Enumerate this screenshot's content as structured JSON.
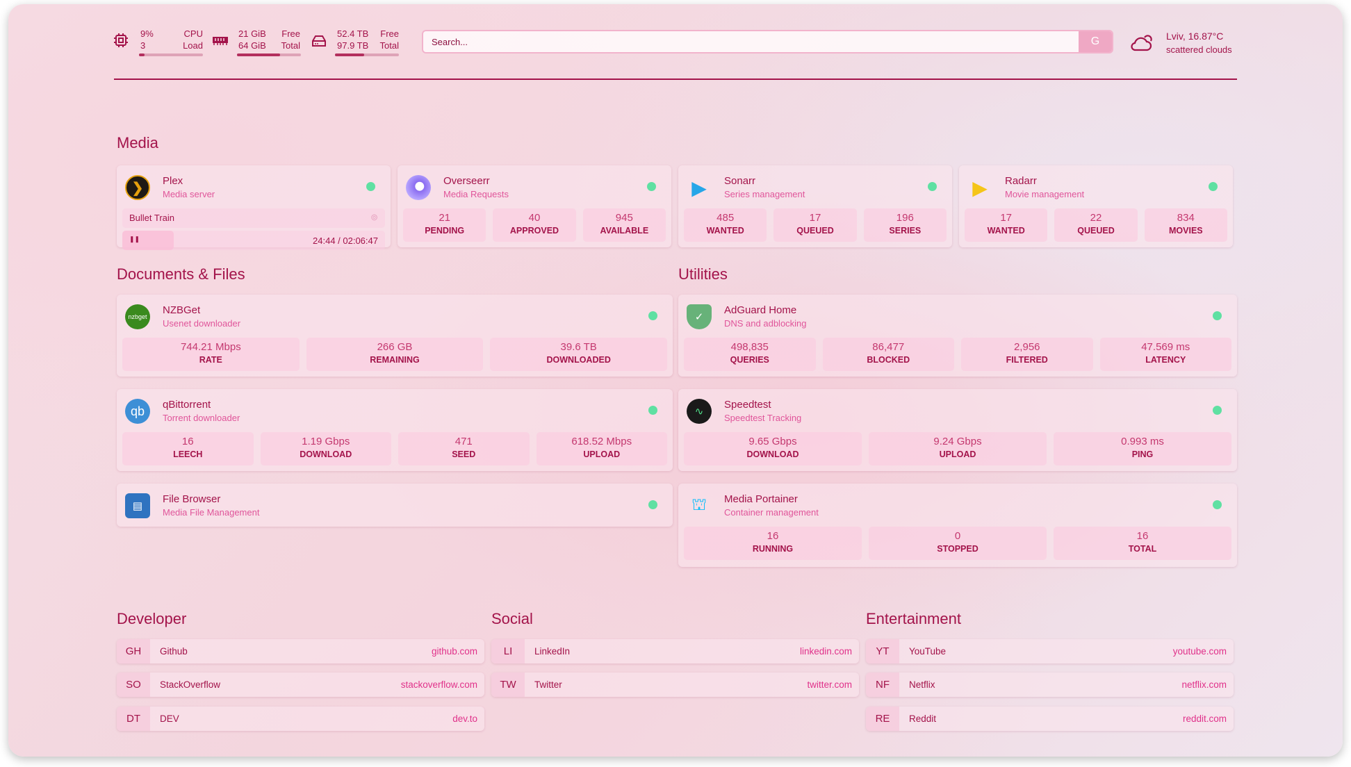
{
  "header": {
    "cpu": {
      "icon": "cpu-icon",
      "value": "9%",
      "sub": "3",
      "label1": "CPU",
      "label2": "Load",
      "percent": 9
    },
    "ram": {
      "icon": "memory-icon",
      "value": "21 GiB",
      "sub": "64 GiB",
      "label1": "Free",
      "label2": "Total",
      "percent": 67
    },
    "disk": {
      "icon": "disk-icon",
      "value": "52.4 TB",
      "sub": "97.9 TB",
      "label1": "Free",
      "label2": "Total",
      "percent": 46
    },
    "search": {
      "placeholder": "Search...",
      "engine": "G"
    },
    "weather": {
      "icon": "cloud-icon",
      "location": "Lviv, 16.87°C",
      "condition": "scattered clouds"
    }
  },
  "colors": {
    "accent": "#a3134a",
    "subtitle": "#e0559a",
    "status_ok": "#5fe0a2"
  },
  "sections": {
    "media": "Media",
    "docs": "Documents & Files",
    "utilities": "Utilities",
    "developer": "Developer",
    "social": "Social",
    "entertainment": "Entertainment"
  },
  "media": [
    {
      "name": "Plex",
      "desc": "Media server",
      "icon": "plex-icon",
      "now_playing": {
        "title": "Bullet Train",
        "time": "24:44 / 02:06:47",
        "state": "paused"
      }
    },
    {
      "name": "Overseerr",
      "desc": "Media Requests",
      "icon": "overseerr-icon",
      "stats": [
        {
          "v": "21",
          "l": "PENDING"
        },
        {
          "v": "40",
          "l": "APPROVED"
        },
        {
          "v": "945",
          "l": "AVAILABLE"
        }
      ]
    },
    {
      "name": "Sonarr",
      "desc": "Series management",
      "icon": "sonarr-icon",
      "stats": [
        {
          "v": "485",
          "l": "WANTED"
        },
        {
          "v": "17",
          "l": "QUEUED"
        },
        {
          "v": "196",
          "l": "SERIES"
        }
      ]
    },
    {
      "name": "Radarr",
      "desc": "Movie management",
      "icon": "radarr-icon",
      "stats": [
        {
          "v": "17",
          "l": "WANTED"
        },
        {
          "v": "22",
          "l": "QUEUED"
        },
        {
          "v": "834",
          "l": "MOVIES"
        }
      ]
    }
  ],
  "docs": [
    {
      "name": "NZBGet",
      "desc": "Usenet downloader",
      "icon": "nzbget-icon",
      "icon_text": "nzbget",
      "stats": [
        {
          "v": "744.21 Mbps",
          "l": "RATE"
        },
        {
          "v": "266 GB",
          "l": "REMAINING"
        },
        {
          "v": "39.6 TB",
          "l": "DOWNLOADED"
        }
      ]
    },
    {
      "name": "qBittorrent",
      "desc": "Torrent downloader",
      "icon": "qbittorrent-icon",
      "icon_text": "qb",
      "stats": [
        {
          "v": "16",
          "l": "LEECH"
        },
        {
          "v": "1.19 Gbps",
          "l": "DOWNLOAD"
        },
        {
          "v": "471",
          "l": "SEED"
        },
        {
          "v": "618.52 Mbps",
          "l": "UPLOAD"
        }
      ]
    },
    {
      "name": "File Browser",
      "desc": "Media File Management",
      "icon": "filebrowser-icon"
    }
  ],
  "utilities": [
    {
      "name": "AdGuard Home",
      "desc": "DNS and adblocking",
      "icon": "adguard-icon",
      "stats": [
        {
          "v": "498,835",
          "l": "QUERIES"
        },
        {
          "v": "86,477",
          "l": "BLOCKED"
        },
        {
          "v": "2,956",
          "l": "FILTERED"
        },
        {
          "v": "47.569 ms",
          "l": "LATENCY"
        }
      ]
    },
    {
      "name": "Speedtest",
      "desc": "Speedtest Tracking",
      "icon": "speedtest-icon",
      "stats": [
        {
          "v": "9.65 Gbps",
          "l": "DOWNLOAD"
        },
        {
          "v": "9.24 Gbps",
          "l": "UPLOAD"
        },
        {
          "v": "0.993 ms",
          "l": "PING"
        }
      ]
    },
    {
      "name": "Media Portainer",
      "desc": "Container management",
      "icon": "portainer-icon",
      "stats": [
        {
          "v": "16",
          "l": "RUNNING"
        },
        {
          "v": "0",
          "l": "STOPPED"
        },
        {
          "v": "16",
          "l": "TOTAL"
        }
      ]
    }
  ],
  "bookmarks": {
    "developer": [
      {
        "abbr": "GH",
        "name": "Github",
        "url": "github.com"
      },
      {
        "abbr": "SO",
        "name": "StackOverflow",
        "url": "stackoverflow.com"
      },
      {
        "abbr": "DT",
        "name": "DEV",
        "url": "dev.to"
      }
    ],
    "social": [
      {
        "abbr": "LI",
        "name": "LinkedIn",
        "url": "linkedin.com"
      },
      {
        "abbr": "TW",
        "name": "Twitter",
        "url": "twitter.com"
      }
    ],
    "entertainment": [
      {
        "abbr": "YT",
        "name": "YouTube",
        "url": "youtube.com"
      },
      {
        "abbr": "NF",
        "name": "Netflix",
        "url": "netflix.com"
      },
      {
        "abbr": "RE",
        "name": "Reddit",
        "url": "reddit.com"
      }
    ]
  }
}
